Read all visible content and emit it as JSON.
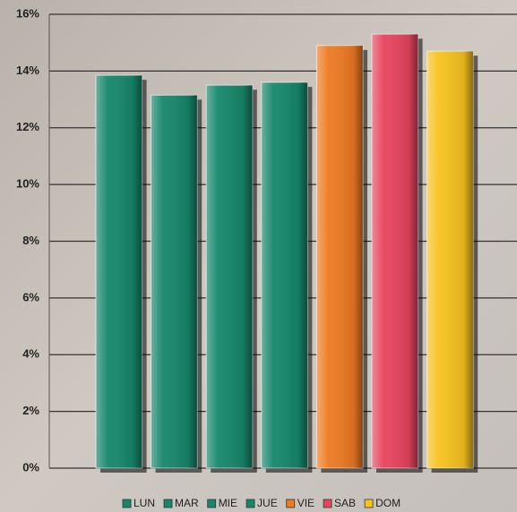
{
  "chart_data": {
    "type": "bar",
    "categories": [
      "LUN",
      "MAR",
      "MIE",
      "JUE",
      "VIE",
      "SAB",
      "DOM"
    ],
    "values": [
      13.85,
      13.15,
      13.5,
      13.6,
      14.9,
      15.3,
      14.7
    ],
    "colors": [
      "#16876b",
      "#16876b",
      "#16876b",
      "#16876b",
      "#ee7a22",
      "#e8445e",
      "#f6c21e"
    ],
    "ylim": [
      0,
      16
    ],
    "yticks": [
      {
        "value": 0,
        "label": "0%"
      },
      {
        "value": 2,
        "label": "2%"
      },
      {
        "value": 4,
        "label": "4%"
      },
      {
        "value": 6,
        "label": "6%"
      },
      {
        "value": 8,
        "label": "8%"
      },
      {
        "value": 10,
        "label": "10%"
      },
      {
        "value": 12,
        "label": "12%"
      },
      {
        "value": 14,
        "label": "14%"
      },
      {
        "value": 16,
        "label": "16%"
      }
    ],
    "grid": true,
    "legend": "bottom"
  }
}
